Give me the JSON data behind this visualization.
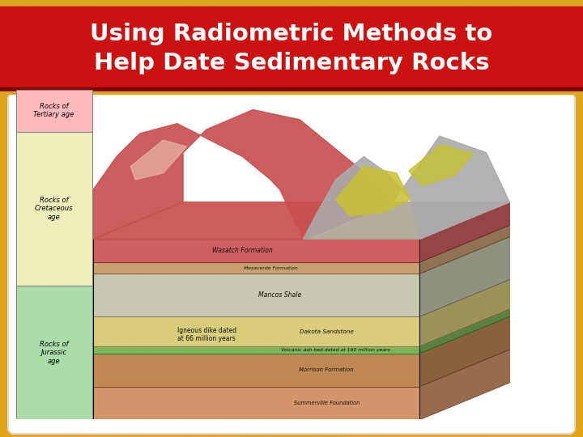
{
  "title_line1": "Using Radiometric Methods to",
  "title_line2": "Help Date Sedimentary Rocks",
  "title_bg_color": "#CC1111",
  "title_text_color": "#FFFFFF",
  "gold_color": "#DAA520",
  "dark_red_color": "#7B0000",
  "bg_colors": [
    "#E8A010",
    "#F5CC50",
    "#FDE878",
    "#F5CC50",
    "#E8A010"
  ],
  "card_color": "#FFFFFF",
  "title_fontsize": 21,
  "figsize": [
    7.2,
    5.4
  ],
  "dpi": 100,
  "layers": [
    {
      "name": "Summerville Foundation",
      "color": "#D4956A",
      "thick": 1.0
    },
    {
      "name": "Morrison Formation",
      "color": "#BF8855",
      "thick": 1.0
    },
    {
      "name": "volcanic_ash",
      "color": "#7DB55A",
      "thick": 0.22
    },
    {
      "name": "Dakota Sandstone",
      "color": "#D9CC7A",
      "thick": 0.9
    },
    {
      "name": "Mancos Shale",
      "color": "#C8C8B0",
      "thick": 1.3
    },
    {
      "name": "Mesaverde Formation",
      "color": "#C8A070",
      "thick": 0.35
    },
    {
      "name": "Wasatch Formation",
      "color": "#D06060",
      "thick": 0.7
    }
  ],
  "age_boxes": [
    {
      "label": "Rocks of\nTertiary age",
      "color": "#FFBBBB",
      "layers": [
        6
      ]
    },
    {
      "label": "Rocks of\nCretaceous\nage",
      "color": "#EEEEBB",
      "layers": [
        3,
        4,
        5
      ]
    },
    {
      "label": "Rocks of\nJurassic\nage",
      "color": "#AADDAA",
      "layers": [
        0,
        1,
        2
      ]
    }
  ]
}
